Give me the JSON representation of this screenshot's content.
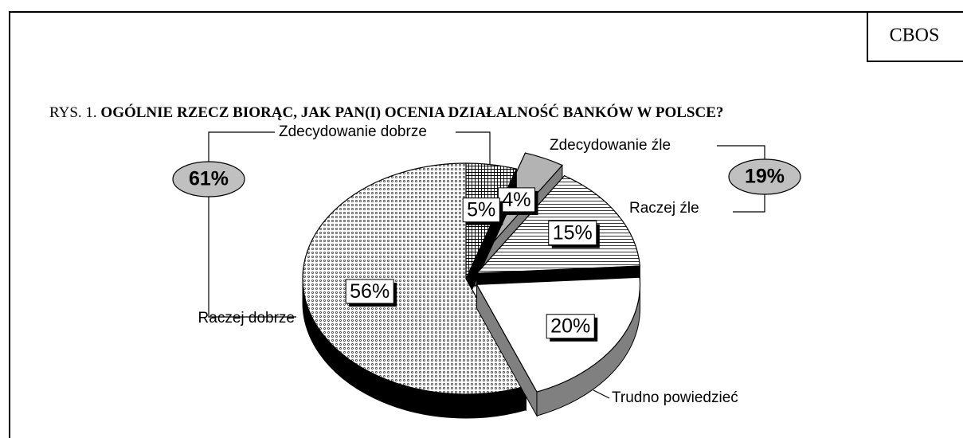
{
  "chart_data": {
    "type": "pie",
    "source": "CBOS",
    "title_prefix": "RYS. 1.",
    "title": "OGÓLNIE RZECZ BIORĄC, JAK PAN(I) OCENIA DZIAŁALNOŚĆ BANKÓW W POLSCE?",
    "categories": [
      "Zdecydowanie dobrze",
      "Zdecydowanie źle",
      "Raczej źle",
      "Trudno powiedzieć",
      "Raczej dobrze"
    ],
    "values": [
      5,
      4,
      15,
      20,
      56
    ],
    "value_labels": [
      "5%",
      "4%",
      "15%",
      "20%",
      "56%"
    ],
    "colors": [
      "#ffffff",
      "#b3b3b3",
      "#ffffff",
      "#ffffff",
      "#ffffff"
    ],
    "patterns": [
      "crosshatch",
      "solid",
      "hlines",
      "solid",
      "dots"
    ],
    "side_colors": [
      "#000000",
      "#808080",
      "#000000",
      "#808080",
      "#000000"
    ],
    "groups": {
      "values": [
        61,
        19
      ],
      "value_labels": [
        "61%",
        "19%"
      ]
    }
  }
}
